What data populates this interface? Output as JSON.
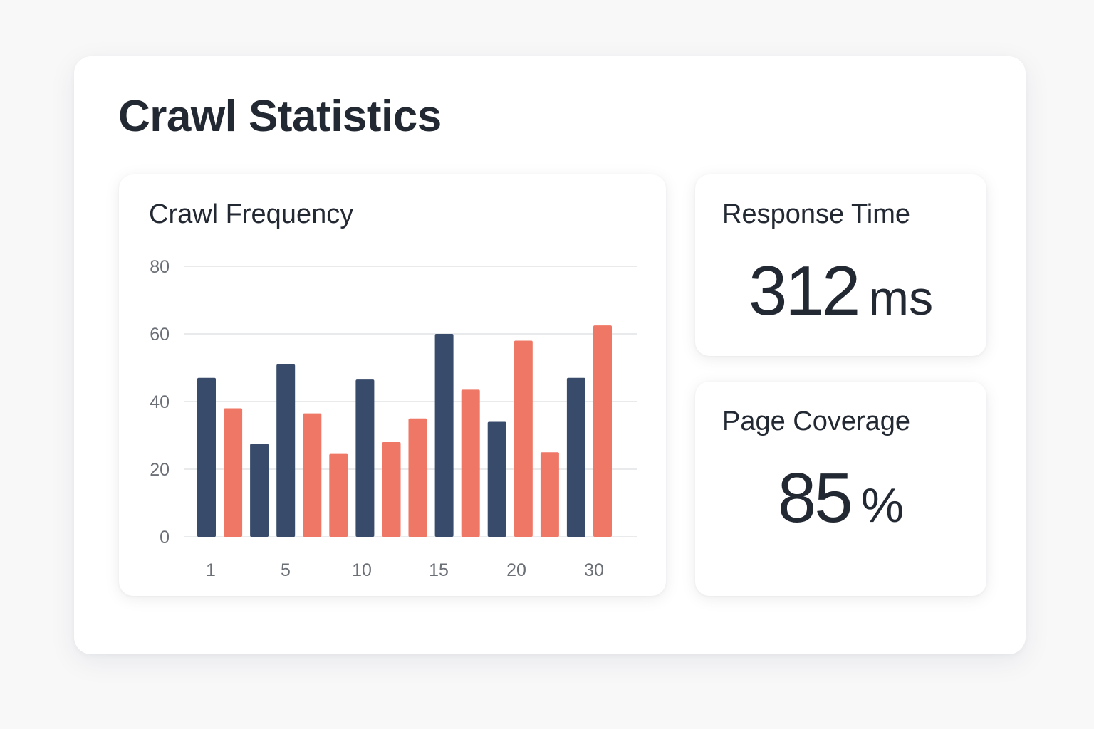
{
  "page": {
    "title": "Crawl Statistics"
  },
  "colors": {
    "series_a": "#394b6b",
    "series_b": "#ef7766",
    "grid": "#e9eaec",
    "tick_text": "#6b6f76"
  },
  "chart_data": {
    "type": "bar",
    "title": "Crawl Frequency",
    "xlabel": "",
    "ylabel": "",
    "ylim": [
      0,
      80
    ],
    "y_ticks": [
      0,
      20,
      40,
      60,
      80
    ],
    "x_tick_labels": [
      "1",
      "5",
      "10",
      "15",
      "20",
      "30"
    ],
    "grid": true,
    "legend": "none",
    "bars": [
      {
        "series": "a",
        "value": 47
      },
      {
        "series": "b",
        "value": 38
      },
      {
        "series": "a",
        "value": 27.5
      },
      {
        "series": "a",
        "value": 51
      },
      {
        "series": "b",
        "value": 36.5
      },
      {
        "series": "b",
        "value": 24.5
      },
      {
        "series": "a",
        "value": 46.5
      },
      {
        "series": "b",
        "value": 28
      },
      {
        "series": "b",
        "value": 35
      },
      {
        "series": "a",
        "value": 60
      },
      {
        "series": "b",
        "value": 43.5
      },
      {
        "series": "a",
        "value": 34
      },
      {
        "series": "b",
        "value": 58
      },
      {
        "series": "b",
        "value": 25
      },
      {
        "series": "a",
        "value": 47
      },
      {
        "series": "b",
        "value": 62.5
      }
    ]
  },
  "stats": {
    "response_time": {
      "label": "Response Time",
      "value": "312",
      "unit": "ms"
    },
    "page_coverage": {
      "label": "Page Coverage",
      "value": "85",
      "unit": "%"
    }
  }
}
